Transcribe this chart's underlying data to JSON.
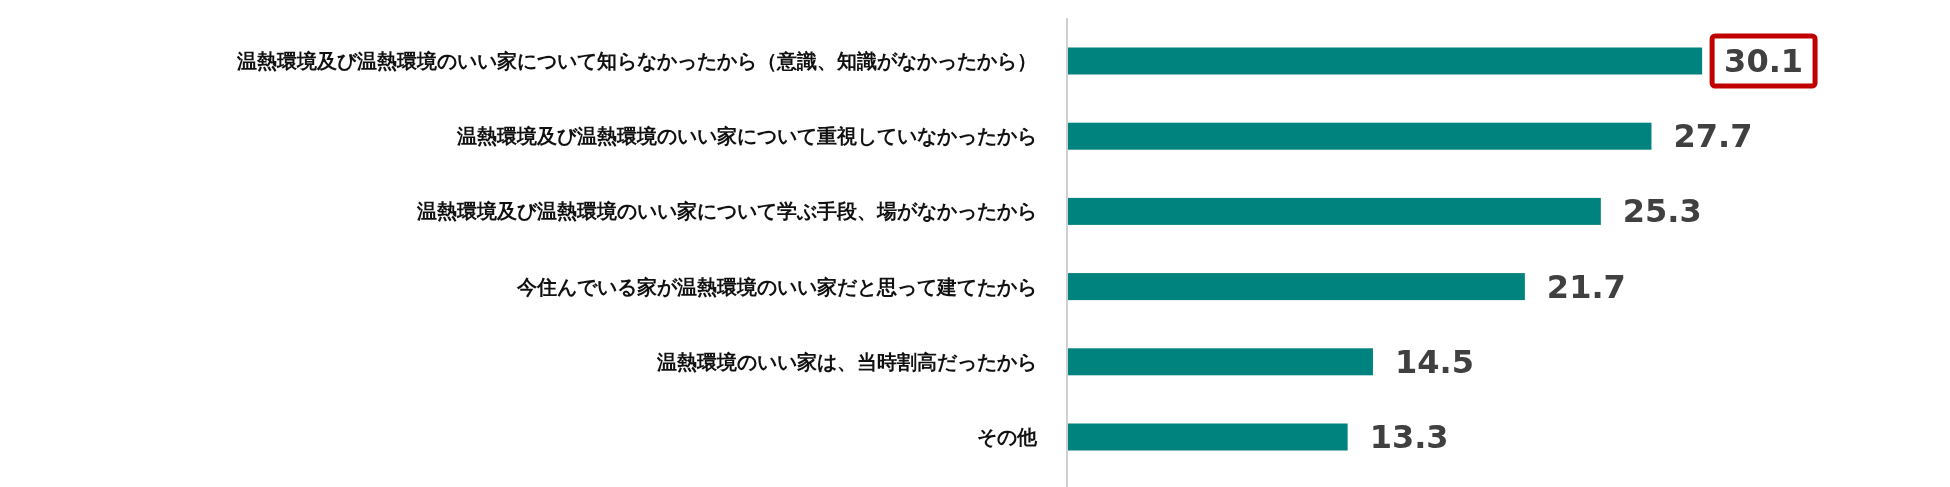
{
  "chart_data": {
    "type": "bar",
    "orientation": "horizontal",
    "categories": [
      "温熱環境及び温熱環境のいい家について知らなかったから（意識、知識がなかったから）",
      "温熱環境及び温熱環境のいい家について重視していなかったから",
      "温熱環境及び温熱環境のいい家について学ぶ手段、場がなかったから",
      "今住んでいる家が温熱環境のいい家だと思って建てたから",
      "温熱環境のいい家は、当時割高だったから",
      "その他"
    ],
    "values": [
      30.1,
      27.7,
      25.3,
      21.7,
      14.5,
      13.3
    ],
    "color": "#00827f",
    "data_labels": true
  }
}
